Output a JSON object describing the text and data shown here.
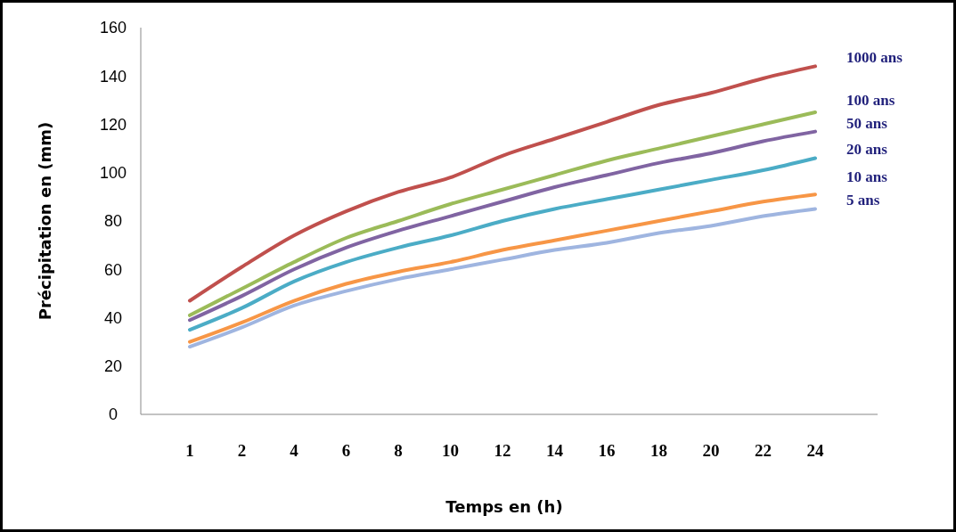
{
  "chart_data": {
    "type": "line",
    "xlabel": "Temps en (h)",
    "ylabel": "Précipitation en (mm)",
    "categories": [
      "1",
      "2",
      "4",
      "6",
      "8",
      "10",
      "12",
      "14",
      "16",
      "18",
      "20",
      "22",
      "24"
    ],
    "ylim": [
      0,
      160
    ],
    "yticks": [
      0,
      20,
      40,
      60,
      80,
      100,
      120,
      140,
      160
    ],
    "grid": false,
    "legend": false,
    "marker": "none",
    "line_style": "solid",
    "series": [
      {
        "name": "1000 ans",
        "color": "#c0504d",
        "values": [
          47,
          61,
          74,
          84,
          92,
          98,
          107,
          114,
          121,
          128,
          133,
          139,
          144
        ]
      },
      {
        "name": "100 ans",
        "color": "#9bbb59",
        "values": [
          41,
          52,
          63,
          73,
          80,
          87,
          93,
          99,
          105,
          110,
          115,
          120,
          125
        ]
      },
      {
        "name": "50 ans",
        "color": "#8064a2",
        "values": [
          39,
          49,
          60,
          69,
          76,
          82,
          88,
          94,
          99,
          104,
          108,
          113,
          117
        ]
      },
      {
        "name": "20 ans",
        "color": "#4bacc6",
        "values": [
          35,
          44,
          55,
          63,
          69,
          74,
          80,
          85,
          89,
          93,
          97,
          101,
          106
        ]
      },
      {
        "name": "10 ans",
        "color": "#f79646",
        "values": [
          30,
          38,
          47,
          54,
          59,
          63,
          68,
          72,
          76,
          80,
          84,
          88,
          91
        ]
      },
      {
        "name": "5 ans",
        "color": "#9fb5e0",
        "values": [
          28,
          36,
          45,
          51,
          56,
          60,
          64,
          68,
          71,
          75,
          78,
          82,
          85
        ]
      }
    ]
  }
}
